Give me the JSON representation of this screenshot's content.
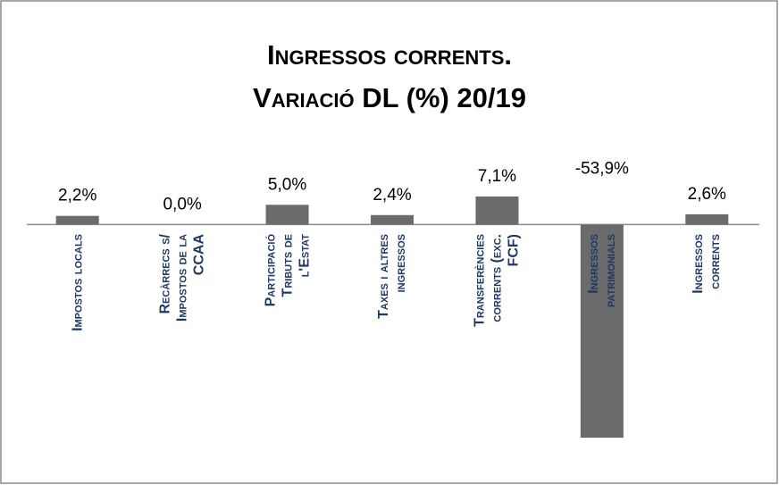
{
  "chart_data": {
    "type": "bar",
    "title": "Ingressos corrents.\nVariació DL (%) 20/19",
    "categories": [
      "Impostos locals",
      "Recàrrecs s/\nImpostos de la\nCCAA",
      "Participació\nTributs de\nl'Estat",
      "Taxes i altres\ningressos",
      "Transferències\ncorrents (exc.\nFCF)",
      "Ingressos\npatrimonials",
      "Ingressos\ncorrents"
    ],
    "values": [
      2.2,
      0.0,
      5.0,
      2.4,
      7.1,
      -53.9,
      2.6
    ],
    "value_labels": [
      "2,2%",
      "0,0%",
      "5,0%",
      "2,4%",
      "7,1%",
      "-53,9%",
      "2,6%"
    ],
    "color": "#6b6b6b"
  }
}
